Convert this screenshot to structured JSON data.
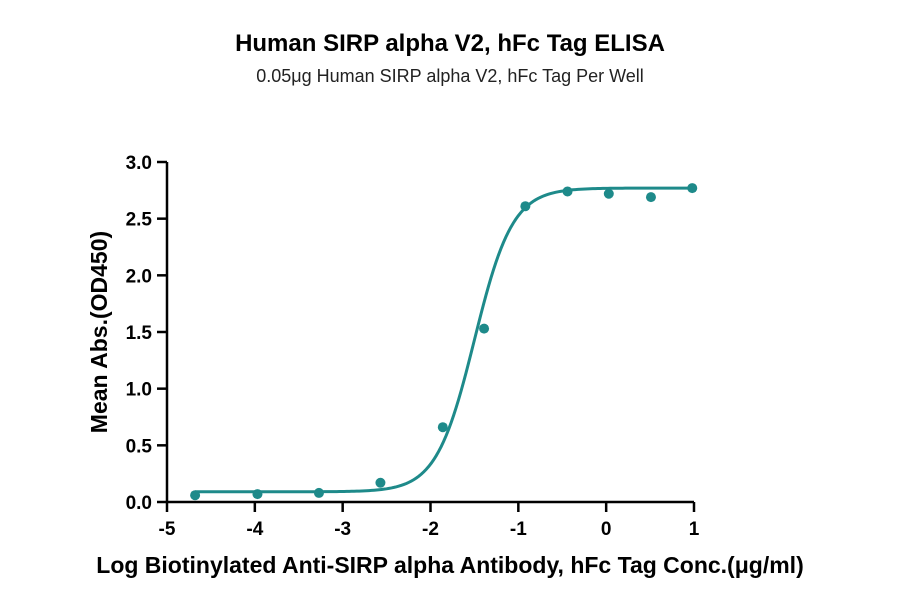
{
  "chart_data": {
    "type": "scatter",
    "title": "Human SIRP alpha V2, hFc Tag ELISA",
    "subtitle": "0.05μg Human SIRP alpha V2, hFc Tag Per Well",
    "xlabel": "Log Biotinylated Anti-SIRP alpha Antibody, hFc Tag Conc.(μg/ml)",
    "ylabel": "Mean Abs.(OD450)",
    "xlim": [
      -5,
      1
    ],
    "ylim": [
      0,
      3
    ],
    "x_ticks": [
      -5,
      -4,
      -3,
      -2,
      -1,
      0,
      1
    ],
    "y_ticks": [
      0.0,
      0.5,
      1.0,
      1.5,
      2.0,
      2.5,
      3.0
    ],
    "x_tick_labels": [
      "-5",
      "-4",
      "-3",
      "-2",
      "-1",
      "0",
      "1"
    ],
    "y_tick_labels": [
      "0.0",
      "0.5",
      "1.0",
      "1.5",
      "2.0",
      "2.5",
      "3.0"
    ],
    "grid": false,
    "color": "#1e8a8a",
    "series": [
      {
        "points": [
          {
            "x": -4.68,
            "y": 0.06
          },
          {
            "x": -3.97,
            "y": 0.07
          },
          {
            "x": -3.27,
            "y": 0.08
          },
          {
            "x": -2.57,
            "y": 0.17
          },
          {
            "x": -1.86,
            "y": 0.66
          },
          {
            "x": -1.39,
            "y": 1.53
          },
          {
            "x": -0.92,
            "y": 2.61
          },
          {
            "x": -0.44,
            "y": 2.74
          },
          {
            "x": 0.03,
            "y": 2.72
          },
          {
            "x": 0.51,
            "y": 2.69
          },
          {
            "x": 0.98,
            "y": 2.77
          }
        ],
        "fit": {
          "model": "4PL",
          "bottom": 0.09,
          "top": 2.77,
          "logEC50": -1.5,
          "hill": 2.0,
          "x_range": [
            -4.68,
            0.98
          ]
        }
      }
    ]
  }
}
